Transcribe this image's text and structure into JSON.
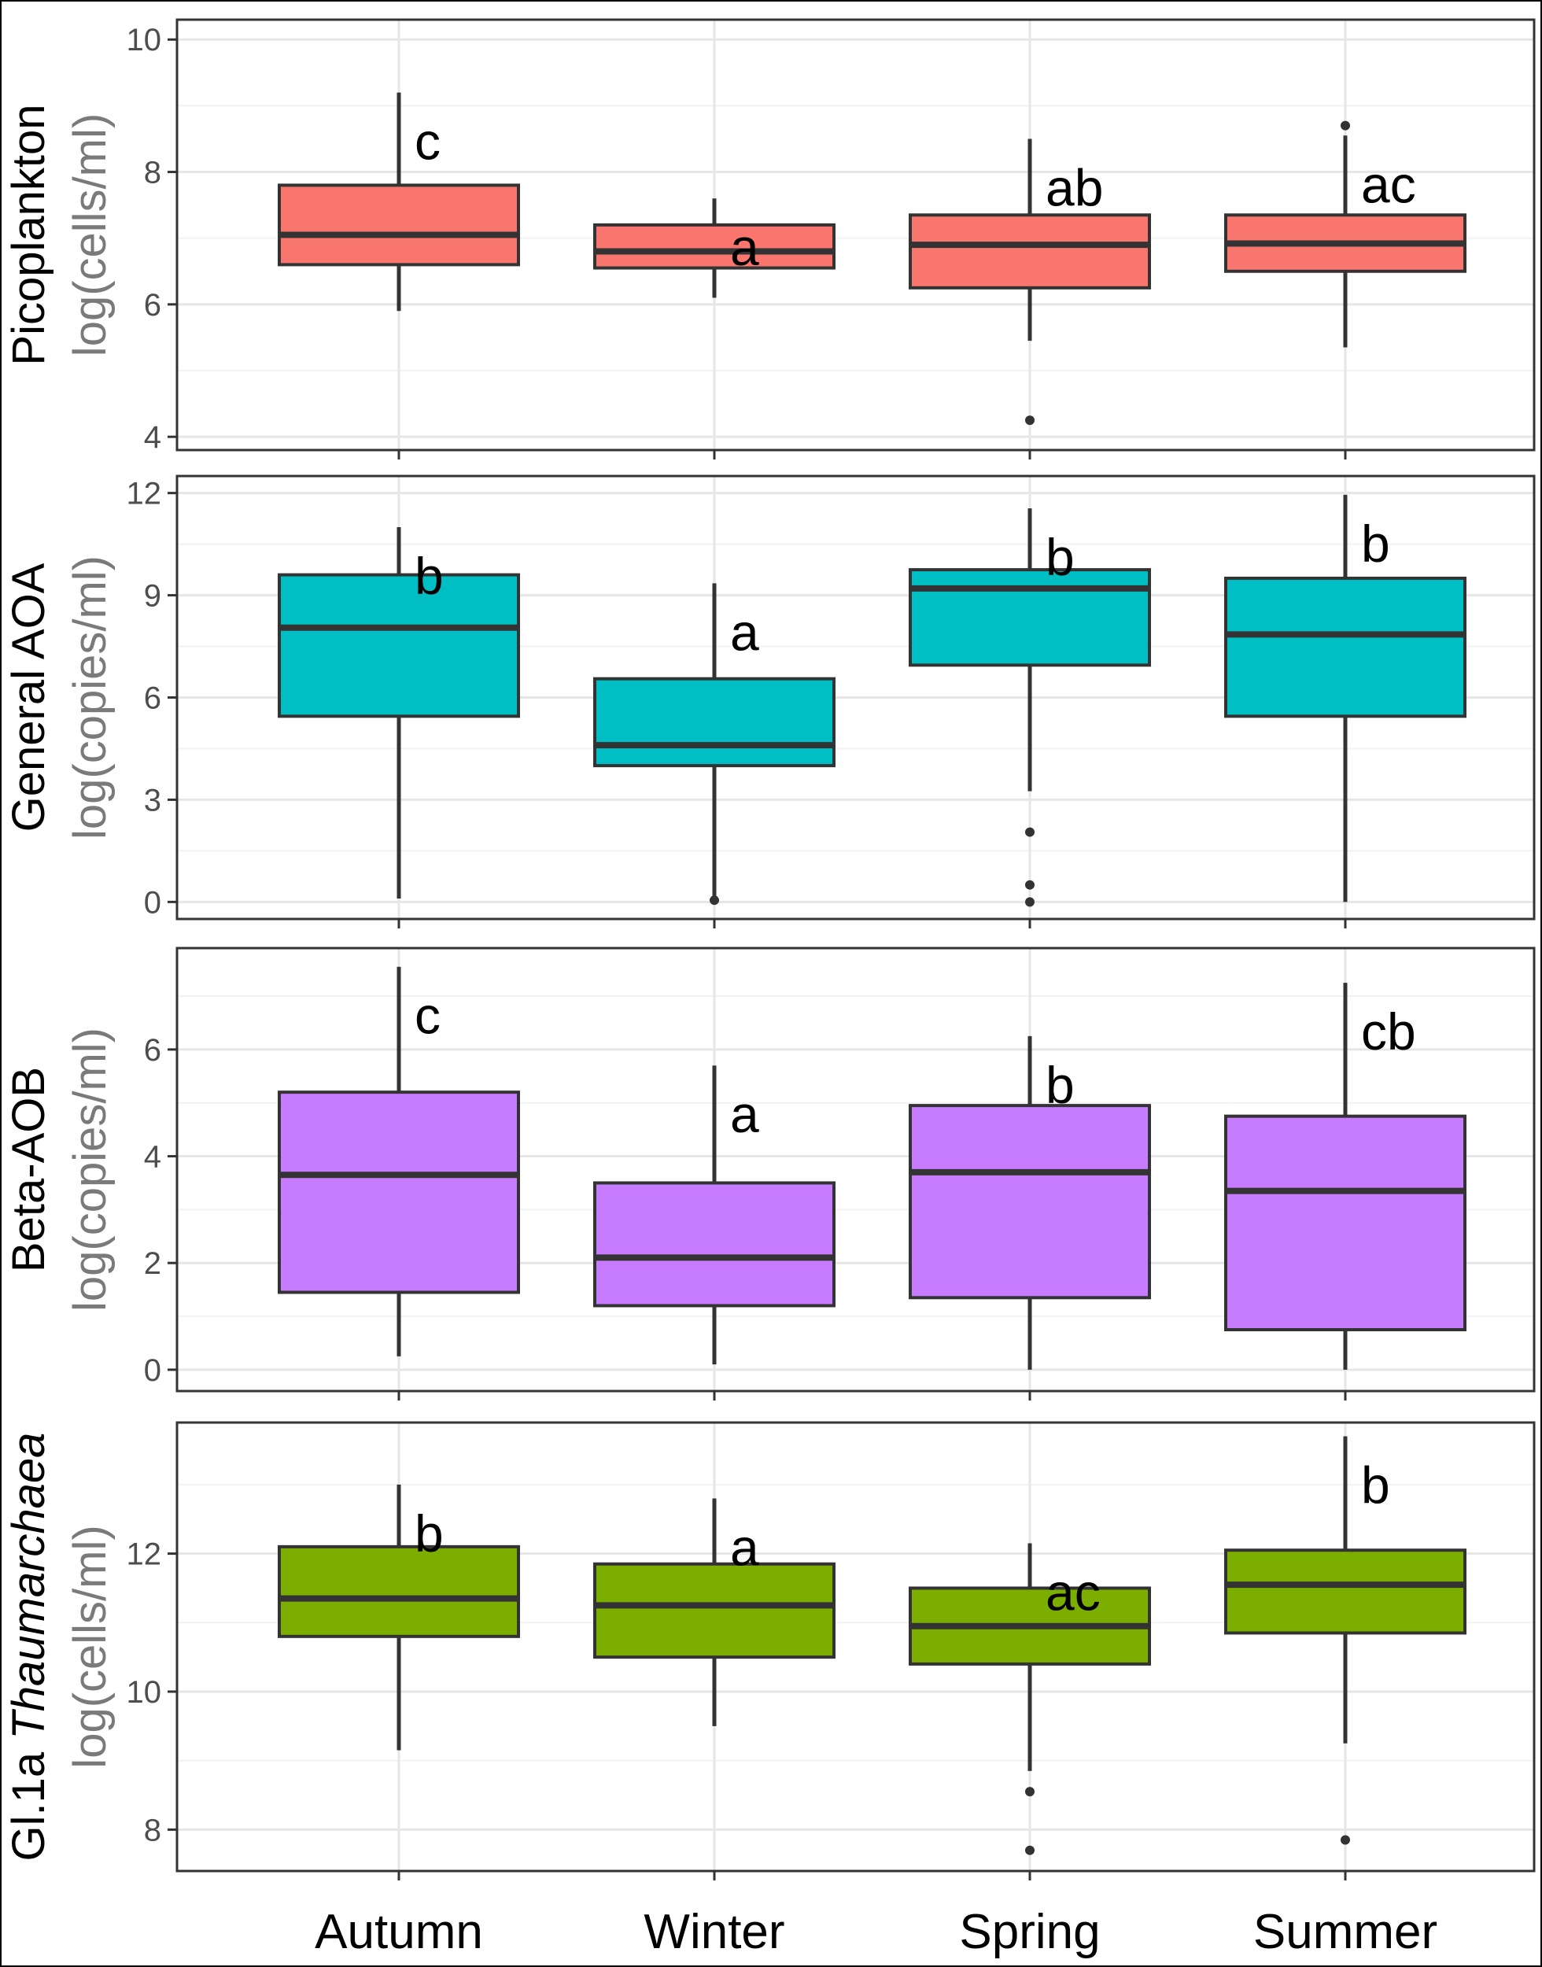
{
  "chart_data": {
    "type": "box",
    "categories": [
      "Autumn",
      "Winter",
      "Spring",
      "Summer"
    ],
    "panels": [
      {
        "name": "Picoplankton",
        "unit": "log(cells/ml)",
        "name_italic_part": "",
        "color": "#f8766d",
        "ylim": [
          3.8,
          10.3
        ],
        "yticks": [
          4,
          6,
          8,
          10
        ],
        "boxes": [
          {
            "category": "Autumn",
            "min": 5.9,
            "q1": 6.6,
            "median": 7.05,
            "q3": 7.8,
            "max": 9.2,
            "outliers": [],
            "letter": "c"
          },
          {
            "category": "Winter",
            "min": 6.1,
            "q1": 6.55,
            "median": 6.8,
            "q3": 7.2,
            "max": 7.6,
            "outliers": [],
            "letter": "a"
          },
          {
            "category": "Spring",
            "min": 5.45,
            "q1": 6.25,
            "median": 6.9,
            "q3": 7.35,
            "max": 8.5,
            "outliers": [
              4.25
            ],
            "letter": "ab"
          },
          {
            "category": "Summer",
            "min": 5.35,
            "q1": 6.5,
            "median": 6.92,
            "q3": 7.35,
            "max": 8.55,
            "outliers": [
              8.7
            ],
            "letter": "ac"
          }
        ]
      },
      {
        "name": "General AOA",
        "unit": "log(copies/ml)",
        "name_italic_part": "",
        "color": "#00bfc4",
        "ylim": [
          -0.5,
          12.5
        ],
        "yticks": [
          0,
          3,
          6,
          9,
          12
        ],
        "boxes": [
          {
            "category": "Autumn",
            "min": 0.1,
            "q1": 5.45,
            "median": 8.05,
            "q3": 9.6,
            "max": 11.0,
            "outliers": [],
            "letter": "b"
          },
          {
            "category": "Winter",
            "min": 0.0,
            "q1": 4.0,
            "median": 4.6,
            "q3": 6.55,
            "max": 9.35,
            "outliers": [
              0.05
            ],
            "letter": "a"
          },
          {
            "category": "Spring",
            "min": 3.25,
            "q1": 6.95,
            "median": 9.2,
            "q3": 9.75,
            "max": 11.55,
            "outliers": [
              2.05,
              0.5,
              0.0
            ],
            "letter": "b"
          },
          {
            "category": "Summer",
            "min": 0.0,
            "q1": 5.45,
            "median": 7.85,
            "q3": 9.5,
            "max": 11.95,
            "outliers": [],
            "letter": "b"
          }
        ]
      },
      {
        "name": "Beta-AOB",
        "unit": "log(copies/ml)",
        "name_italic_part": "",
        "color": "#c77cff",
        "ylim": [
          -0.4,
          7.9
        ],
        "yticks": [
          0,
          2,
          4,
          6
        ],
        "boxes": [
          {
            "category": "Autumn",
            "min": 0.25,
            "q1": 1.45,
            "median": 3.65,
            "q3": 5.2,
            "max": 7.55,
            "outliers": [],
            "letter": "c"
          },
          {
            "category": "Winter",
            "min": 0.1,
            "q1": 1.2,
            "median": 2.1,
            "q3": 3.5,
            "max": 5.7,
            "outliers": [],
            "letter": "a"
          },
          {
            "category": "Spring",
            "min": 0.0,
            "q1": 1.35,
            "median": 3.7,
            "q3": 4.95,
            "max": 6.25,
            "outliers": [],
            "letter": "b"
          },
          {
            "category": "Summer",
            "min": 0.0,
            "q1": 0.75,
            "median": 3.35,
            "q3": 4.75,
            "max": 7.25,
            "outliers": [],
            "letter": "cb"
          }
        ]
      },
      {
        "name": "Gl.1a ",
        "unit": "log(cells/ml)",
        "name_italic_part": "Thaumarchaea",
        "color": "#7cae00",
        "ylim": [
          7.4,
          13.9
        ],
        "yticks": [
          8,
          10,
          12
        ],
        "boxes": [
          {
            "category": "Autumn",
            "min": 9.15,
            "q1": 10.8,
            "median": 11.35,
            "q3": 12.1,
            "max": 13.0,
            "outliers": [],
            "letter": "b"
          },
          {
            "category": "Winter",
            "min": 9.5,
            "q1": 10.5,
            "median": 11.25,
            "q3": 11.85,
            "max": 12.8,
            "outliers": [],
            "letter": "a"
          },
          {
            "category": "Spring",
            "min": 8.85,
            "q1": 10.4,
            "median": 10.95,
            "q3": 11.5,
            "max": 12.15,
            "outliers": [
              8.55,
              7.7
            ],
            "letter": "ac"
          },
          {
            "category": "Summer",
            "min": 9.25,
            "q1": 10.85,
            "median": 11.55,
            "q3": 12.05,
            "max": 13.7,
            "outliers": [
              7.85
            ],
            "letter": "b"
          }
        ]
      }
    ]
  }
}
